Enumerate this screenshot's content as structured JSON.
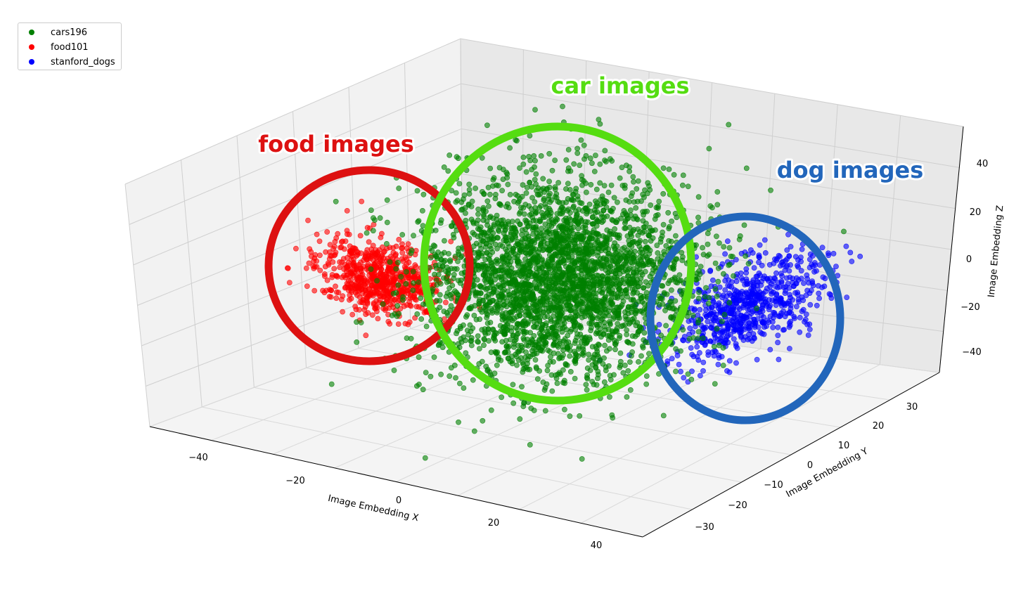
{
  "chart_data": {
    "type": "scatter",
    "dimensions": 3,
    "xlabel": "Image Embedding X",
    "ylabel": "Image Embedding Y",
    "zlabel": "Image Embedding Z",
    "xticks": [
      "−40",
      "−20",
      "0",
      "20",
      "40"
    ],
    "yticks": [
      "−30",
      "−20",
      "−10",
      "0",
      "10",
      "20",
      "30"
    ],
    "zticks": [
      "−40",
      "−20",
      "0",
      "20",
      "40"
    ],
    "xlim": [
      -50,
      50
    ],
    "ylim": [
      -35,
      35
    ],
    "zlim": [
      -50,
      50
    ],
    "grid": true,
    "legend_position": "upper-left",
    "series": [
      {
        "name": "cars196",
        "color": "#008000",
        "approx_center": [
          0,
          0,
          0
        ],
        "approx_spread": [
          20,
          10,
          22
        ],
        "approx_count": 5000
      },
      {
        "name": "food101",
        "color": "#ff0000",
        "approx_center": [
          -35,
          0,
          0
        ],
        "approx_spread": [
          8,
          6,
          8
        ],
        "approx_count": 900
      },
      {
        "name": "stanford_dogs",
        "color": "#0000ff",
        "approx_center": [
          35,
          5,
          -5
        ],
        "approx_spread": [
          8,
          8,
          8
        ],
        "approx_count": 900
      }
    ],
    "annotations": [
      {
        "text": "food images",
        "color": "#dd1111",
        "encircles": "food101"
      },
      {
        "text": "car images",
        "color": "#55dd11",
        "encircles": "cars196"
      },
      {
        "text": "dog images",
        "color": "#2266bb",
        "encircles": "stanford_dogs"
      }
    ]
  }
}
